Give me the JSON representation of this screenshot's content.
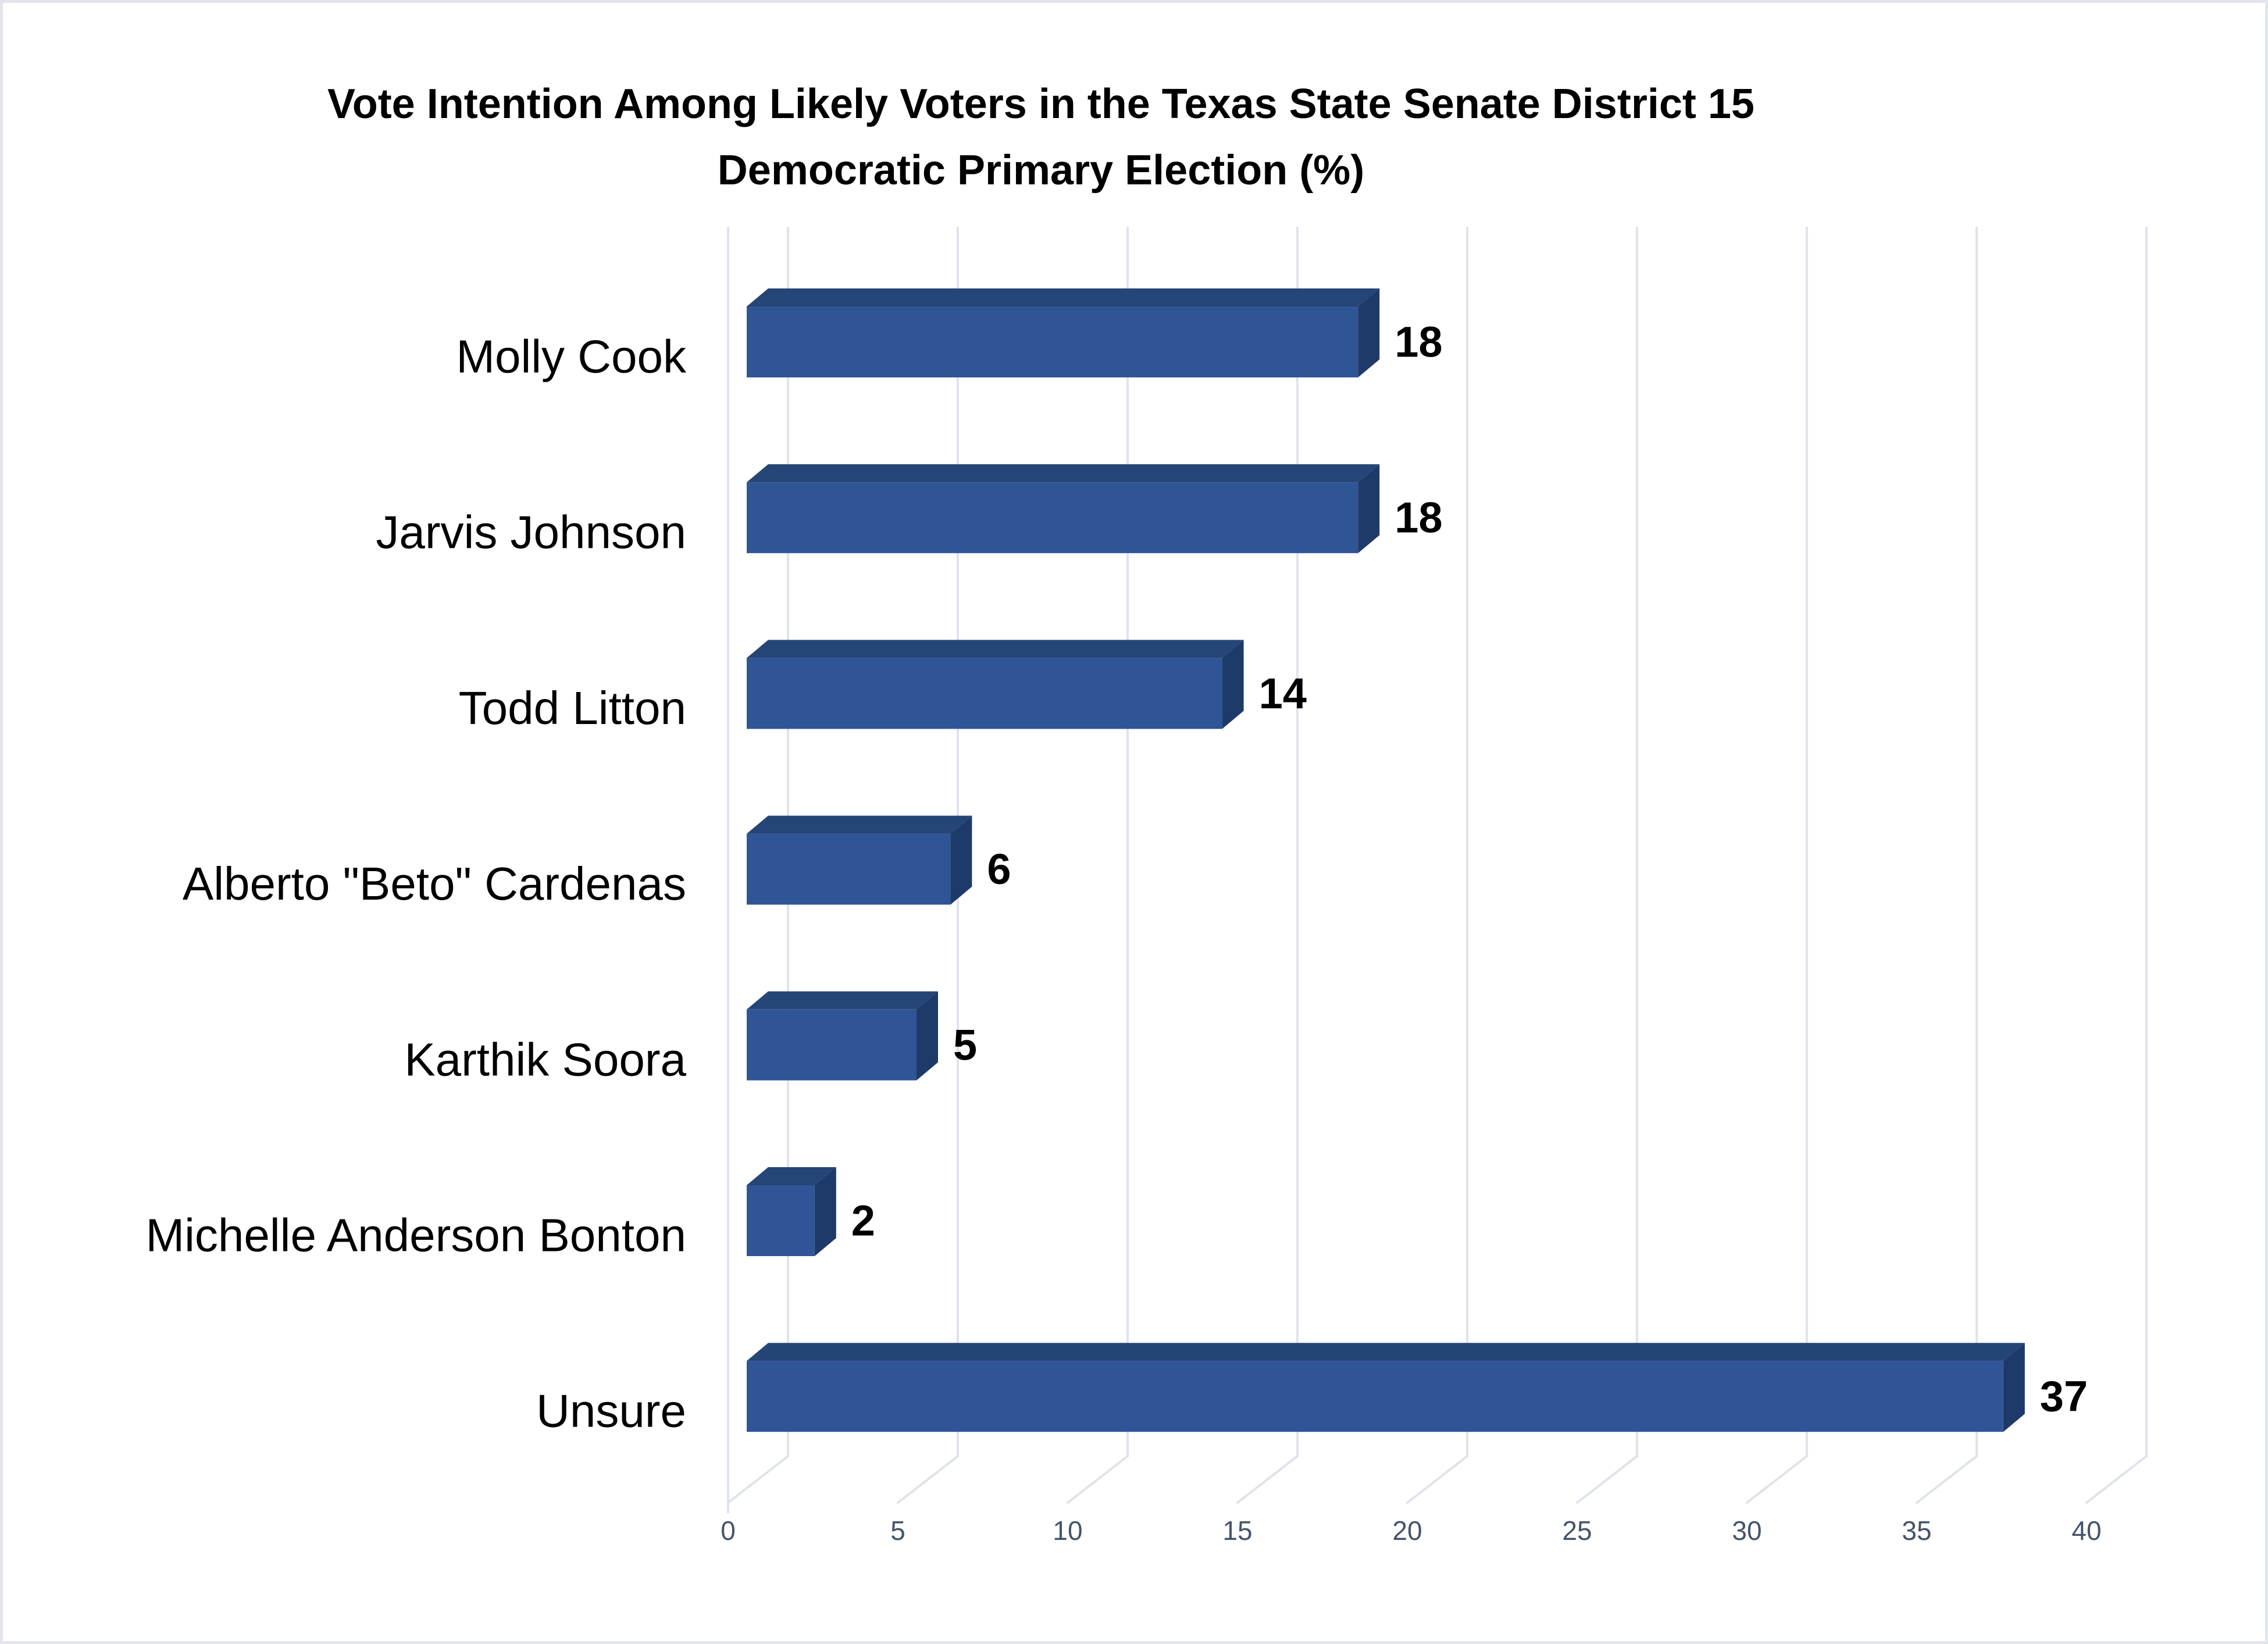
{
  "header": {
    "title_line1": "Vote Intention Among Likely Voters in the Texas State Senate District 15",
    "title_line2": "Democratic Primary Election (%)"
  },
  "chart_data": {
    "type": "bar",
    "orientation": "horizontal",
    "style": "3d",
    "title": "Vote Intention Among Likely Voters in the Texas State Senate District 15 Democratic Primary Election (%)",
    "categories": [
      "Molly Cook",
      "Jarvis Johnson",
      "Todd Litton",
      "Alberto \"Beto\" Cardenas",
      "Karthik Soora",
      "Michelle Anderson Bonton",
      "Unsure"
    ],
    "values": [
      18,
      18,
      14,
      6,
      5,
      2,
      37
    ],
    "data_labels": [
      18,
      18,
      14,
      6,
      5,
      2,
      37
    ],
    "xlabel": "",
    "ylabel": "",
    "xlim": [
      0,
      40
    ],
    "xticks": [
      0,
      5,
      10,
      15,
      20,
      25,
      30,
      35,
      40
    ],
    "grid": true,
    "legend": false,
    "colors": {
      "bar_front": "#2F5596",
      "bar_top": "#254577",
      "bar_side": "#1E3A69",
      "gridline": "#DFE3EB",
      "tick_text": "#44546A",
      "label_text": "#000000",
      "frame_border": "#E2E5EB"
    }
  }
}
